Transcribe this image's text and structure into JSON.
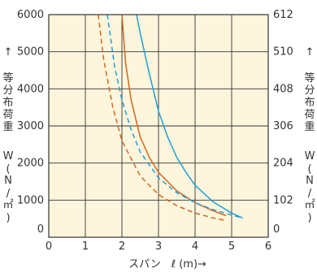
{
  "chart_data": {
    "type": "line",
    "title": "",
    "xlabel": "スパン　ℓ (m)→",
    "ylabel_left": [
      "↑",
      "等",
      "分",
      "布",
      "荷",
      "重",
      "W",
      "(",
      "N",
      "/",
      "㎡",
      ")"
    ],
    "ylabel_right": [
      "↑",
      "等",
      "分",
      "布",
      "荷",
      "重",
      "W",
      "(",
      "N",
      "/",
      "㎡",
      ")"
    ],
    "xlim": [
      0,
      6
    ],
    "ylim": [
      0,
      6000
    ],
    "x_ticks": [
      "0",
      "1",
      "2",
      "3",
      "4",
      "5",
      "6"
    ],
    "y_ticks_left": [
      "0",
      "1000",
      "2000",
      "3000",
      "4000",
      "5000",
      "6000"
    ],
    "y_ticks_right": [
      "0",
      "102",
      "204",
      "306",
      "408",
      "510",
      "612"
    ],
    "grid": true,
    "colors": {
      "background": "#fdf5dc",
      "grid": "#333333",
      "orange": "#d2691e",
      "blue": "#1ea0d8"
    },
    "series": [
      {
        "color": "#d2691e",
        "style": "dashed",
        "points": [
          [
            1.35,
            6000
          ],
          [
            1.5,
            4800
          ],
          [
            1.75,
            3500
          ],
          [
            2.0,
            2600
          ],
          [
            2.5,
            1650
          ],
          [
            3.0,
            1150
          ],
          [
            3.5,
            850
          ],
          [
            4.0,
            650
          ],
          [
            4.5,
            520
          ],
          [
            4.8,
            460
          ]
        ]
      },
      {
        "color": "#d2691e",
        "style": "solid",
        "points": [
          [
            2.0,
            6000
          ],
          [
            2.1,
            4700
          ],
          [
            2.25,
            3700
          ],
          [
            2.5,
            2700
          ],
          [
            2.75,
            2150
          ],
          [
            3.0,
            1750
          ],
          [
            3.5,
            1250
          ],
          [
            4.0,
            930
          ],
          [
            4.5,
            710
          ],
          [
            4.85,
            580
          ]
        ]
      },
      {
        "color": "#1ea0d8",
        "style": "dashed",
        "points": [
          [
            1.6,
            6000
          ],
          [
            1.8,
            4600
          ],
          [
            2.0,
            3700
          ],
          [
            2.25,
            2900
          ],
          [
            2.5,
            2300
          ],
          [
            3.0,
            1600
          ],
          [
            3.5,
            1200
          ],
          [
            4.0,
            930
          ],
          [
            4.5,
            740
          ],
          [
            5.0,
            600
          ],
          [
            5.3,
            520
          ]
        ]
      },
      {
        "color": "#1ea0d8",
        "style": "solid",
        "points": [
          [
            2.4,
            6000
          ],
          [
            2.5,
            5500
          ],
          [
            2.75,
            4400
          ],
          [
            3.0,
            3400
          ],
          [
            3.25,
            2700
          ],
          [
            3.5,
            2150
          ],
          [
            3.75,
            1750
          ],
          [
            4.0,
            1400
          ],
          [
            4.5,
            950
          ],
          [
            5.0,
            650
          ],
          [
            5.3,
            520
          ]
        ]
      }
    ]
  }
}
